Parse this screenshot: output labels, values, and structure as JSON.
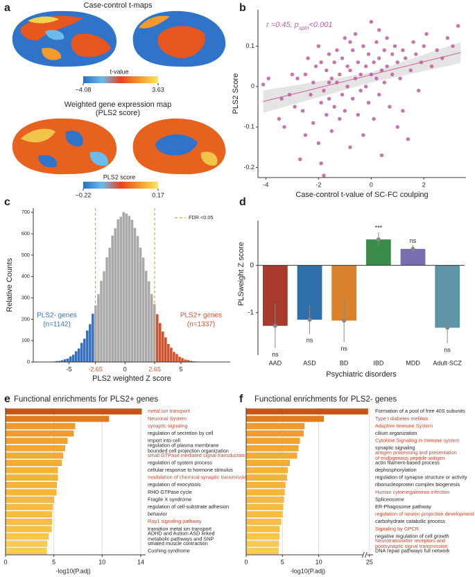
{
  "chart_data": [
    {
      "type": "brain-map",
      "label": "a",
      "maps": [
        {
          "title": "Case-control t-maps",
          "colorbar_title": "t-value",
          "clim": [
            -4.08,
            3.63
          ],
          "cticks": [
            {
              "value": -4.08,
              "label": "−4.08"
            },
            3.63
          ],
          "colors": [
            "#2a6fc4",
            "#6bbcec",
            "#e8421e",
            "#f39a2c",
            "#f7e95a"
          ]
        },
        {
          "title": "Weighted gene expression map",
          "subtitle": "(PLS2 score)",
          "colorbar_title": "PLS2 score",
          "clim": [
            -0.22,
            0.17
          ],
          "cticks": [
            {
              "value": -0.22,
              "label": "−0.22"
            },
            0.17
          ],
          "colors": [
            "#2a6fc4",
            "#6bbcec",
            "#e8421e",
            "#f39a2c",
            "#f7e95a"
          ]
        }
      ]
    },
    {
      "type": "scatter",
      "label": "b",
      "annotation": [
        "r =0.45, p",
        "spin",
        "<0.001"
      ],
      "xlabel": "Case-control t-value of SC-FC coulping",
      "ylabel": "PLS2 Score",
      "xlim": [
        -4.3,
        3.6
      ],
      "xticks": [
        -4,
        -2,
        0,
        2
      ],
      "ylim": [
        -0.225,
        0.19
      ],
      "yticks": [
        -0.2,
        -0.1,
        0,
        0.1
      ],
      "color": "#c0609e",
      "fit_color": "#d070a8",
      "band_color": "#d8d8d8",
      "x": [
        -4.1,
        -3.9,
        -3.5,
        -3.4,
        -3.3,
        -3.1,
        -3.0,
        -2.9,
        -2.8,
        -2.7,
        -2.6,
        -2.5,
        -2.5,
        -2.4,
        -2.3,
        -2.2,
        -2.2,
        -2.1,
        -2.0,
        -2.0,
        -1.9,
        -1.9,
        -1.8,
        -1.8,
        -1.7,
        -1.7,
        -1.6,
        -1.6,
        -1.5,
        -1.5,
        -1.4,
        -1.4,
        -1.3,
        -1.3,
        -1.2,
        -1.2,
        -1.1,
        -1.1,
        -1.0,
        -1.0,
        -0.9,
        -0.9,
        -0.8,
        -0.8,
        -0.7,
        -0.7,
        -0.6,
        -0.6,
        -0.5,
        -0.5,
        -0.4,
        -0.4,
        -0.3,
        -0.3,
        -0.2,
        -0.2,
        -0.1,
        -0.1,
        0.0,
        0.0,
        0.1,
        0.1,
        0.2,
        0.2,
        0.3,
        0.3,
        0.4,
        0.4,
        0.5,
        0.5,
        0.6,
        0.6,
        0.7,
        0.8,
        0.8,
        0.9,
        1.0,
        1.0,
        1.1,
        1.2,
        1.3,
        1.4,
        1.5,
        1.6,
        1.7,
        1.8,
        1.9,
        2.0,
        2.1,
        2.3,
        2.5,
        2.7,
        2.9,
        3.1,
        3.3,
        -1.9,
        -1.6,
        0.3,
        -0.8,
        1.2
      ],
      "values": [
        0.005,
        0.02,
        -0.08,
        -0.03,
        -0.1,
        -0.02,
        0.03,
        -0.05,
        0.02,
        -0.18,
        -0.06,
        0.03,
        -0.12,
        0.07,
        -0.02,
        -0.09,
        0.01,
        0.05,
        -0.14,
        0.1,
        -0.04,
        0.06,
        -0.22,
        -0.01,
        0.04,
        -0.07,
        0.08,
        -0.03,
        0.02,
        -0.11,
        0.06,
        -0.05,
        0.01,
        0.09,
        -0.08,
        0.03,
        -0.02,
        0.07,
        0.12,
        -0.06,
        0.0,
        0.05,
        -0.15,
        0.04,
        0.09,
        -0.03,
        0.02,
        0.13,
        -0.07,
        0.06,
        0.03,
        -0.01,
        0.1,
        -0.12,
        0.05,
        0.0,
        0.08,
        -0.04,
        0.03,
        0.16,
        -0.08,
        0.06,
        0.02,
        0.11,
        -0.02,
        0.07,
        0.04,
        -0.17,
        0.09,
        0.01,
        0.05,
        0.12,
        -0.05,
        0.08,
        0.03,
        0.1,
        -0.1,
        0.06,
        0.02,
        0.09,
        0.07,
        -0.13,
        0.04,
        0.11,
        0.08,
        -0.01,
        0.06,
        0.1,
        0.13,
        0.05,
        0.09,
        0.07,
        0.12,
        0.1,
        0.15,
        -0.19,
        0.01,
        0.14,
        0.11,
        -0.06
      ],
      "fit": {
        "x": [
          -4.1,
          3.4
        ],
        "y": [
          -0.037,
          0.084
        ]
      },
      "band": {
        "x": [
          -4.1,
          0,
          3.4
        ],
        "lower": [
          -0.065,
          0.01,
          0.058
        ],
        "upper": [
          -0.01,
          0.035,
          0.11
        ]
      }
    },
    {
      "type": "histogram",
      "label": "c",
      "xlabel": "PLS2 weighted Z score",
      "ylabel": "Relative Counts",
      "bins": [
        -7.5,
        -7.25,
        -7.0,
        -6.75,
        -6.5,
        -6.25,
        -6.0,
        -5.75,
        -5.5,
        -5.25,
        -5.0,
        -4.75,
        -4.5,
        -4.25,
        -4.0,
        -3.75,
        -3.5,
        -3.25,
        -3.0,
        -2.75,
        -2.5,
        -2.25,
        -2.0,
        -1.75,
        -1.5,
        -1.25,
        -1.0,
        -0.75,
        -0.5,
        -0.25,
        0.0,
        0.25,
        0.5,
        0.75,
        1.0,
        1.25,
        1.5,
        1.75,
        2.0,
        2.25,
        2.5,
        2.75,
        3.0,
        3.25,
        3.5,
        3.75,
        4.0,
        4.25,
        4.5,
        4.75,
        5.0,
        5.25,
        5.5,
        5.75,
        6.0,
        6.25,
        6.5,
        6.75,
        7.0,
        7.25,
        7.5
      ],
      "values": [
        0,
        1,
        1,
        2,
        3,
        5,
        6,
        9,
        14,
        17,
        27,
        35,
        51,
        64,
        90,
        110,
        148,
        178,
        226,
        265,
        318,
        380,
        425,
        490,
        535,
        592,
        626,
        668,
        680,
        702,
        695,
        684,
        666,
        628,
        590,
        536,
        489,
        427,
        378,
        318,
        272,
        224,
        183,
        143,
        116,
        85,
        68,
        48,
        38,
        25,
        19,
        12,
        10,
        6,
        4,
        3,
        2,
        1,
        1,
        1
      ],
      "thresholds": [
        -2.65,
        2.65
      ],
      "threshold_color": "#e8a040",
      "legend": "FDR <0.05",
      "colors": [
        "#3a6fb5",
        "#a9a9a9",
        "#d9502a"
      ],
      "annotations": [
        [
          "PLS2- genes",
          "(n=1142)"
        ],
        [
          "PLS2+ genes",
          "(n=1337)"
        ]
      ],
      "xlim": [
        -8.2,
        9.4
      ],
      "xticks": [
        -5,
        -2.65,
        0,
        2.65,
        5
      ],
      "ylim": [
        0,
        720
      ],
      "yticks": [
        0,
        100,
        200,
        300,
        400,
        500,
        600,
        700
      ]
    },
    {
      "type": "bar",
      "label": "d",
      "xlabel": "Psychiatric  disorders",
      "ylabel": "PLSweight Z score",
      "categories": [
        "AAD",
        "ASD",
        "BD",
        "IBD",
        "MDD",
        "Adult-SCZ"
      ],
      "values": [
        -1.28,
        -1.15,
        -1.17,
        0.55,
        0.35,
        -1.32
      ],
      "errors": [
        0.47,
        0.3,
        0.45,
        0.15,
        0.08,
        0.33
      ],
      "annotations": [
        "ns",
        "ns",
        "ns",
        "***",
        "ns",
        "ns"
      ],
      "colors": [
        "#a63a2b",
        "#2e6eaa",
        "#d9822b",
        "#3a8a4a",
        "#7a6db0",
        "#5f93a6"
      ],
      "ylim": [
        -1.9,
        0.95
      ],
      "yticks": [
        -1,
        0
      ]
    },
    {
      "type": "barh",
      "label": "e",
      "title": "Functional enrichments for PLS2+ genes",
      "xlabel": "-log10(P.adj)",
      "categories": [
        "metal ion transport",
        "Neuronal System",
        "synaptic signaling",
        "regulation of secretion by cell",
        "import into cell",
        [
          "regulation of plasma membrane",
          "bounded cell projection organization"
        ],
        "small GTPase mediated signal transduction",
        "regulation of system process",
        "cellular response to hormone stimulus",
        "modulation of chemical synaptic transmission",
        "regulation of exocytosis",
        "RHO GTPase cycle",
        "Fragile X syndrome",
        "regulation of cell-substrate adhesion",
        "behavior",
        "Rap1 signaling pathway",
        "transition metal ion transport",
        [
          "ADHD and Autism ASD linked",
          "metabolic pathways and SNP"
        ],
        "striated muscle contraction",
        "Cushing syndrome"
      ],
      "values": [
        14.1,
        10.7,
        7.2,
        7.05,
        6.4,
        6.15,
        5.95,
        5.8,
        5.4,
        5.4,
        5.3,
        5.25,
        5.0,
        4.9,
        4.8,
        4.8,
        4.75,
        4.45,
        4.3,
        4.25
      ],
      "highlight": [
        true,
        true,
        true,
        false,
        false,
        false,
        true,
        false,
        false,
        true,
        false,
        false,
        false,
        false,
        false,
        true,
        false,
        false,
        false,
        false
      ],
      "highlight_color": "#d0452a",
      "colors": [
        "#c4531c",
        "#e27a1f",
        "#f29a2a",
        "#f29a2a",
        "#f4a22c",
        "#f4a62e",
        "#f5aa30",
        "#f5ac30",
        "#f6b234",
        "#f6b234",
        "#f6b436",
        "#f7b637",
        "#f7ba3a",
        "#f7bc3b",
        "#f8be3d",
        "#f8be3d",
        "#f8c040",
        "#f9c848",
        "#f9cc4c",
        "#facd4e"
      ],
      "xlim": [
        0,
        14.5
      ],
      "xticks": [
        0,
        5,
        10,
        14
      ]
    },
    {
      "type": "barh",
      "label": "f",
      "title": "Functional enrichments for PLS2- genes",
      "xlabel": "-log10(P.adj)",
      "categories": [
        "Formation of a pool of free 40S subunits",
        "Type I diabetes mellitus",
        "Adaptive Immune System",
        "cilium organization",
        "Cytokine Signaling in Immune system",
        "synaptic signaling",
        [
          "antigen processing and presentation",
          "of endogenous peptide antigen"
        ],
        "actin filament-based process",
        "dephosphorylation",
        "regulation of synapse structure or activity",
        "ribonucleoprotein complex biogenesis",
        "Human cytomegalovirus infection",
        "Spliceosome",
        "ER-Phagosome pathway",
        "regulation of neuron projection development",
        "carbohydrate catabolic process",
        "Signaling by GPCR",
        "negative regulation of cell growth",
        [
          "Neurotransmitter receptors and",
          "postsynaptic signal transmission"
        ],
        "DNA repair pathways full network"
      ],
      "values": [
        24.8,
        10.7,
        8.0,
        7.9,
        7.4,
        7.2,
        7.0,
        6.0,
        5.7,
        5.6,
        5.4,
        5.3,
        5.2,
        5.1,
        5.0,
        4.8,
        4.6,
        4.55,
        4.5,
        4.45
      ],
      "highlight": [
        false,
        true,
        true,
        false,
        true,
        false,
        true,
        false,
        false,
        false,
        false,
        true,
        false,
        false,
        true,
        false,
        true,
        false,
        true,
        false
      ],
      "highlight_color": "#d0452a",
      "colors": [
        "#c4531c",
        "#e27a1f",
        "#f29a2a",
        "#f29a2a",
        "#f4a22c",
        "#f4a62e",
        "#f5aa30",
        "#f5ac30",
        "#f6b234",
        "#f6b234",
        "#f6b436",
        "#f7b637",
        "#f7ba3a",
        "#f7bc3b",
        "#f8be3d",
        "#f8be3d",
        "#f8c040",
        "#f9c848",
        "#f9cc4c",
        "#facd4e"
      ],
      "xlim": [
        0,
        25.5
      ],
      "xbreak": [
        16,
        24
      ],
      "xticks": [
        0,
        5,
        10,
        25
      ]
    }
  ]
}
